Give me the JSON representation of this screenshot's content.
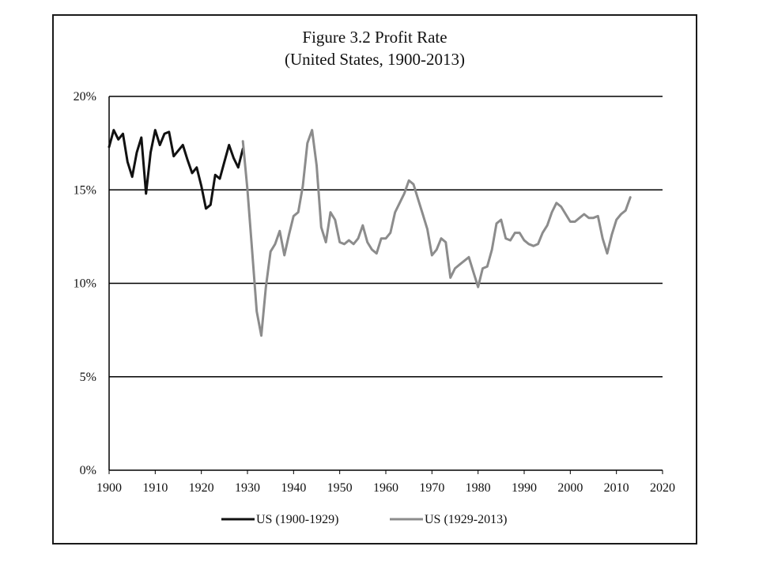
{
  "chart_data": {
    "type": "line",
    "title": "Figure 3.2 Profit Rate",
    "subtitle": "(United States, 1900-2013)",
    "xlabel": "",
    "ylabel": "",
    "xlim": [
      1900,
      2020
    ],
    "ylim": [
      0,
      20
    ],
    "x_ticks": [
      1900,
      1910,
      1920,
      1930,
      1940,
      1950,
      1960,
      1970,
      1980,
      1990,
      2000,
      2010,
      2020
    ],
    "y_ticks": [
      0,
      5,
      10,
      15,
      20
    ],
    "y_tick_labels": [
      "0%",
      "5%",
      "10%",
      "15%",
      "20%"
    ],
    "grid": "horizontal",
    "legend_position": "bottom",
    "series": [
      {
        "name": "US (1900-1929)",
        "color": "#111111",
        "x": [
          1900,
          1901,
          1902,
          1903,
          1904,
          1905,
          1906,
          1907,
          1908,
          1909,
          1910,
          1911,
          1912,
          1913,
          1914,
          1915,
          1916,
          1917,
          1918,
          1919,
          1920,
          1921,
          1922,
          1923,
          1924,
          1925,
          1926,
          1927,
          1928,
          1929
        ],
        "y": [
          17.3,
          18.2,
          17.7,
          18.0,
          16.5,
          15.7,
          17.0,
          17.8,
          14.8,
          17.0,
          18.2,
          17.4,
          18.0,
          18.1,
          16.8,
          17.1,
          17.4,
          16.6,
          15.9,
          16.2,
          15.2,
          14.0,
          14.2,
          15.8,
          15.6,
          16.5,
          17.4,
          16.7,
          16.2,
          17.2
        ]
      },
      {
        "name": "US (1929-2013)",
        "color": "#8c8c8c",
        "x": [
          1929,
          1930,
          1931,
          1932,
          1933,
          1934,
          1935,
          1936,
          1937,
          1938,
          1939,
          1940,
          1941,
          1942,
          1943,
          1944,
          1945,
          1946,
          1947,
          1948,
          1949,
          1950,
          1951,
          1952,
          1953,
          1954,
          1955,
          1956,
          1957,
          1958,
          1959,
          1960,
          1961,
          1962,
          1963,
          1964,
          1965,
          1966,
          1967,
          1968,
          1969,
          1970,
          1971,
          1972,
          1973,
          1974,
          1975,
          1976,
          1977,
          1978,
          1979,
          1980,
          1981,
          1982,
          1983,
          1984,
          1985,
          1986,
          1987,
          1988,
          1989,
          1990,
          1991,
          1992,
          1993,
          1994,
          1995,
          1996,
          1997,
          1998,
          1999,
          2000,
          2001,
          2002,
          2003,
          2004,
          2005,
          2006,
          2007,
          2008,
          2009,
          2010,
          2011,
          2012,
          2013
        ],
        "y": [
          17.6,
          15.0,
          11.8,
          8.5,
          7.2,
          9.8,
          11.7,
          12.1,
          12.8,
          11.5,
          12.6,
          13.6,
          13.8,
          15.2,
          17.5,
          18.2,
          16.3,
          13.0,
          12.2,
          13.8,
          13.4,
          12.2,
          12.1,
          12.3,
          12.1,
          12.4,
          13.1,
          12.2,
          11.8,
          11.6,
          12.4,
          12.4,
          12.7,
          13.8,
          14.3,
          14.8,
          15.5,
          15.3,
          14.5,
          13.7,
          12.9,
          11.5,
          11.8,
          12.4,
          12.2,
          10.3,
          10.8,
          11.0,
          11.2,
          11.4,
          10.6,
          9.8,
          10.8,
          10.9,
          11.8,
          13.2,
          13.4,
          12.4,
          12.3,
          12.7,
          12.7,
          12.3,
          12.1,
          12.0,
          12.1,
          12.7,
          13.1,
          13.8,
          14.3,
          14.1,
          13.7,
          13.3,
          13.3,
          13.5,
          13.7,
          13.5,
          13.5,
          13.6,
          12.4,
          11.6,
          12.6,
          13.4,
          13.7,
          13.9,
          14.6
        ]
      }
    ]
  }
}
